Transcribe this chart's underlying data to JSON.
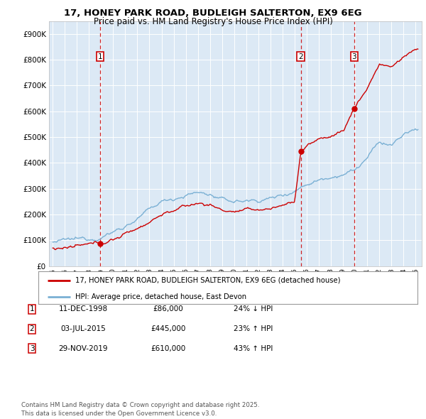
{
  "title": "17, HONEY PARK ROAD, BUDLEIGH SALTERTON, EX9 6EG",
  "subtitle": "Price paid vs. HM Land Registry's House Price Index (HPI)",
  "xlim": [
    1994.7,
    2025.5
  ],
  "ylim": [
    0,
    950000
  ],
  "yticks": [
    0,
    100000,
    200000,
    300000,
    400000,
    500000,
    600000,
    700000,
    800000,
    900000
  ],
  "ytick_labels": [
    "£0",
    "£100K",
    "£200K",
    "£300K",
    "£400K",
    "£500K",
    "£600K",
    "£700K",
    "£800K",
    "£900K"
  ],
  "background_color": "#dce9f5",
  "grid_color": "#ffffff",
  "sale_color": "#cc0000",
  "hpi_color": "#7ab0d4",
  "sale_dates": [
    1998.94,
    2015.5,
    2019.91
  ],
  "sale_prices": [
    86000,
    445000,
    610000
  ],
  "sale_labels": [
    "1",
    "2",
    "3"
  ],
  "legend_sale": "17, HONEY PARK ROAD, BUDLEIGH SALTERTON, EX9 6EG (detached house)",
  "legend_hpi": "HPI: Average price, detached house, East Devon",
  "table_data": [
    [
      "1",
      "11-DEC-1998",
      "£86,000",
      "24% ↓ HPI"
    ],
    [
      "2",
      "03-JUL-2015",
      "£445,000",
      "23% ↑ HPI"
    ],
    [
      "3",
      "29-NOV-2019",
      "£610,000",
      "43% ↑ HPI"
    ]
  ],
  "footer": "Contains HM Land Registry data © Crown copyright and database right 2025.\nThis data is licensed under the Open Government Licence v3.0.",
  "title_fontsize": 9.5,
  "subtitle_fontsize": 8.5,
  "hpi_knots_x": [
    1995,
    1996,
    1997,
    1998,
    1999,
    2000,
    2001,
    2002,
    2003,
    2004,
    2005,
    2006,
    2007,
    2008,
    2009,
    2010,
    2011,
    2012,
    2013,
    2014,
    2015,
    2016,
    2017,
    2018,
    2019,
    2020,
    2021,
    2022,
    2023,
    2024,
    2025
  ],
  "hpi_knots_y": [
    93000,
    97000,
    101000,
    107000,
    117000,
    134000,
    157000,
    183000,
    215000,
    248000,
    263000,
    277000,
    285000,
    278000,
    255000,
    250000,
    253000,
    256000,
    263000,
    276000,
    295000,
    320000,
    338000,
    350000,
    362000,
    373000,
    418000,
    477000,
    467000,
    508000,
    528000
  ],
  "prop_knots_x": [
    1995,
    1996,
    1997,
    1998,
    1998.94,
    2000,
    2001,
    2002,
    2003,
    2004,
    2005,
    2006,
    2007,
    2008,
    2009,
    2010,
    2011,
    2012,
    2013,
    2014,
    2015,
    2015.5,
    2016,
    2017,
    2018,
    2019,
    2019.91,
    2020,
    2021,
    2022,
    2023,
    2024,
    2025
  ],
  "prop_knots_y": [
    70000,
    72000,
    74000,
    78000,
    86000,
    104000,
    124000,
    148000,
    174000,
    202000,
    217000,
    230000,
    243000,
    238000,
    217000,
    212000,
    214000,
    217000,
    223000,
    236000,
    252000,
    445000,
    468000,
    488000,
    506000,
    524000,
    610000,
    618000,
    690000,
    785000,
    770000,
    810000,
    840000
  ]
}
